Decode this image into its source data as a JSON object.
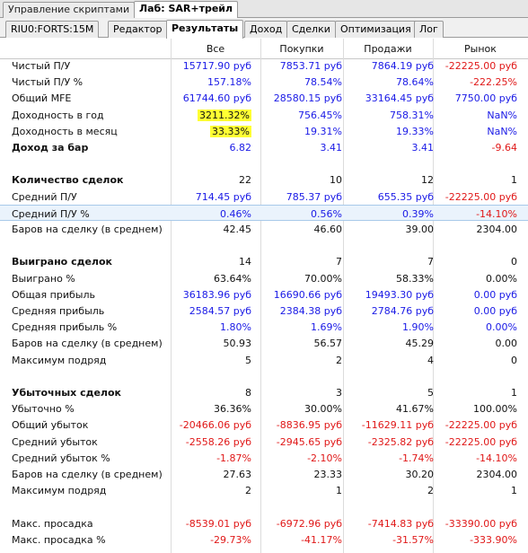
{
  "top_tabs": [
    {
      "label": "Управление скриптами",
      "active": false
    },
    {
      "label": "Лаб: SAR+трейл",
      "active": true
    }
  ],
  "sub_tabs": [
    {
      "label": "RIU0:FORTS:15M",
      "active": false
    },
    {
      "label": "Редактор",
      "active": false
    },
    {
      "label": "Результаты",
      "active": true
    },
    {
      "label": "Доход",
      "active": false
    },
    {
      "label": "Сделки",
      "active": false
    },
    {
      "label": "Оптимизация",
      "active": false
    },
    {
      "label": "Лог",
      "active": false
    }
  ],
  "columns": [
    "Все",
    "Покупки",
    "Продажи",
    "Рынок"
  ],
  "colors": {
    "positive": "#1a1ae6",
    "negative": "#e01818",
    "highlight": "#ffff33",
    "selected_row": "#eaf3fc"
  },
  "rows": [
    {
      "label": "Чистый П/У",
      "bold": false,
      "values": [
        "15717.90 руб",
        "7853.71 руб",
        "7864.19 руб",
        "-22225.00 руб"
      ],
      "colors": [
        "blue",
        "blue",
        "blue",
        "red"
      ]
    },
    {
      "label": "Чистый П/У %",
      "bold": false,
      "values": [
        "157.18%",
        "78.54%",
        "78.64%",
        "-222.25%"
      ],
      "colors": [
        "blue",
        "blue",
        "blue",
        "red"
      ]
    },
    {
      "label": "Общий MFE",
      "bold": false,
      "values": [
        "61744.60 руб",
        "28580.15 руб",
        "33164.45 руб",
        "7750.00 руб"
      ],
      "colors": [
        "blue",
        "blue",
        "blue",
        "blue"
      ]
    },
    {
      "label": "Доходность в год",
      "bold": false,
      "values": [
        "3211.32%",
        "756.45%",
        "758.31%",
        "NaN%"
      ],
      "colors": [
        "black",
        "blue",
        "blue",
        "blue"
      ],
      "highlight": [
        true,
        false,
        false,
        false
      ]
    },
    {
      "label": "Доходность в месяц",
      "bold": false,
      "values": [
        "33.33%",
        "19.31%",
        "19.33%",
        "NaN%"
      ],
      "colors": [
        "black",
        "blue",
        "blue",
        "blue"
      ],
      "highlight": [
        true,
        false,
        false,
        false
      ]
    },
    {
      "label": "Доход за бар",
      "bold": true,
      "values": [
        "6.82",
        "3.41",
        "3.41",
        "-9.64"
      ],
      "colors": [
        "blue",
        "blue",
        "blue",
        "red"
      ]
    },
    {
      "label": "",
      "bold": false,
      "values": [
        "",
        "",
        "",
        ""
      ],
      "colors": [
        "black",
        "black",
        "black",
        "black"
      ]
    },
    {
      "label": "Количество сделок",
      "bold": true,
      "values": [
        "22",
        "10",
        "12",
        "1"
      ],
      "colors": [
        "black",
        "black",
        "black",
        "black"
      ]
    },
    {
      "label": "Средний П/У",
      "bold": false,
      "values": [
        "714.45 руб",
        "785.37 руб",
        "655.35 руб",
        "-22225.00 руб"
      ],
      "colors": [
        "blue",
        "blue",
        "blue",
        "red"
      ]
    },
    {
      "label": "Средний П/У %",
      "bold": false,
      "values": [
        "0.46%",
        "0.56%",
        "0.39%",
        "-14.10%"
      ],
      "colors": [
        "blue",
        "blue",
        "blue",
        "red"
      ],
      "selected": true
    },
    {
      "label": "Баров на сделку (в среднем)",
      "bold": false,
      "values": [
        "42.45",
        "46.60",
        "39.00",
        "2304.00"
      ],
      "colors": [
        "black",
        "black",
        "black",
        "black"
      ]
    },
    {
      "label": "",
      "bold": false,
      "values": [
        "",
        "",
        "",
        ""
      ],
      "colors": [
        "black",
        "black",
        "black",
        "black"
      ]
    },
    {
      "label": "Выиграно сделок",
      "bold": true,
      "values": [
        "14",
        "7",
        "7",
        "0"
      ],
      "colors": [
        "black",
        "black",
        "black",
        "black"
      ]
    },
    {
      "label": "Выиграно %",
      "bold": false,
      "values": [
        "63.64%",
        "70.00%",
        "58.33%",
        "0.00%"
      ],
      "colors": [
        "black",
        "black",
        "black",
        "black"
      ]
    },
    {
      "label": "Общая прибыль",
      "bold": false,
      "values": [
        "36183.96 руб",
        "16690.66 руб",
        "19493.30 руб",
        "0.00 руб"
      ],
      "colors": [
        "blue",
        "blue",
        "blue",
        "blue"
      ]
    },
    {
      "label": "Средняя прибыль",
      "bold": false,
      "values": [
        "2584.57 руб",
        "2384.38 руб",
        "2784.76 руб",
        "0.00 руб"
      ],
      "colors": [
        "blue",
        "blue",
        "blue",
        "blue"
      ]
    },
    {
      "label": "Средняя прибыль %",
      "bold": false,
      "values": [
        "1.80%",
        "1.69%",
        "1.90%",
        "0.00%"
      ],
      "colors": [
        "blue",
        "blue",
        "blue",
        "blue"
      ]
    },
    {
      "label": "Баров на сделку (в среднем)",
      "bold": false,
      "values": [
        "50.93",
        "56.57",
        "45.29",
        "0.00"
      ],
      "colors": [
        "black",
        "black",
        "black",
        "black"
      ]
    },
    {
      "label": "Максимум подряд",
      "bold": false,
      "values": [
        "5",
        "2",
        "4",
        "0"
      ],
      "colors": [
        "black",
        "black",
        "black",
        "black"
      ]
    },
    {
      "label": "",
      "bold": false,
      "values": [
        "",
        "",
        "",
        ""
      ],
      "colors": [
        "black",
        "black",
        "black",
        "black"
      ]
    },
    {
      "label": "Убыточных сделок",
      "bold": true,
      "values": [
        "8",
        "3",
        "5",
        "1"
      ],
      "colors": [
        "black",
        "black",
        "black",
        "black"
      ]
    },
    {
      "label": "Убыточно %",
      "bold": false,
      "values": [
        "36.36%",
        "30.00%",
        "41.67%",
        "100.00%"
      ],
      "colors": [
        "black",
        "black",
        "black",
        "black"
      ]
    },
    {
      "label": "Общий убыток",
      "bold": false,
      "values": [
        "-20466.06 руб",
        "-8836.95 руб",
        "-11629.11 руб",
        "-22225.00 руб"
      ],
      "colors": [
        "red",
        "red",
        "red",
        "red"
      ]
    },
    {
      "label": "Средний убыток",
      "bold": false,
      "values": [
        "-2558.26 руб",
        "-2945.65 руб",
        "-2325.82 руб",
        "-22225.00 руб"
      ],
      "colors": [
        "red",
        "red",
        "red",
        "red"
      ]
    },
    {
      "label": "Средний убыток %",
      "bold": false,
      "values": [
        "-1.87%",
        "-2.10%",
        "-1.74%",
        "-14.10%"
      ],
      "colors": [
        "red",
        "red",
        "red",
        "red"
      ]
    },
    {
      "label": "Баров на сделку (в среднем)",
      "bold": false,
      "values": [
        "27.63",
        "23.33",
        "30.20",
        "2304.00"
      ],
      "colors": [
        "black",
        "black",
        "black",
        "black"
      ]
    },
    {
      "label": "Максимум подряд",
      "bold": false,
      "values": [
        "2",
        "1",
        "2",
        "1"
      ],
      "colors": [
        "black",
        "black",
        "black",
        "black"
      ]
    },
    {
      "label": "",
      "bold": false,
      "values": [
        "",
        "",
        "",
        ""
      ],
      "colors": [
        "black",
        "black",
        "black",
        "black"
      ]
    },
    {
      "label": "Макс. просадка",
      "bold": false,
      "values": [
        "-8539.01 руб",
        "-6972.96 руб",
        "-7414.83 руб",
        "-33390.00 руб"
      ],
      "colors": [
        "red",
        "red",
        "red",
        "red"
      ]
    },
    {
      "label": "Макс. просадка %",
      "bold": false,
      "values": [
        "-29.73%",
        "-41.17%",
        "-31.57%",
        "-333.90%"
      ],
      "colors": [
        "red",
        "red",
        "red",
        "red"
      ]
    }
  ]
}
